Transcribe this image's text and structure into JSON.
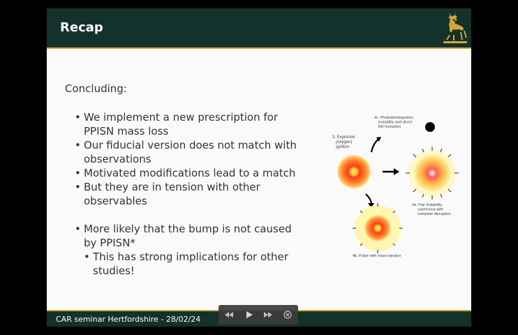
{
  "slide": {
    "title": "Recap",
    "intro": "Concluding:",
    "bullets": [
      "We implement a new prescription for PPISN mass loss",
      "Our fiducial version does not match with observations",
      "Motivated modifications lead to a match",
      "But they are in tension with other observables"
    ],
    "bullet_more": "More likely that the bump is not caused by PPISN*",
    "sub_bullet": "This has strong implications for other studies!",
    "footer": "CAR seminar Hertfordshire - 28/02/24"
  },
  "diagram": {
    "label_3": "3. Explosive (oxygen) ignition",
    "label_4c": "4c. Photodisintegration instability and direct BH formation",
    "label_4a": "4a. Pair Instability supernova with complete disruption",
    "label_4b": "4b. Pulse with mass ejection"
  },
  "controls": {
    "icons": [
      "rewind-icon",
      "play-icon",
      "fast-forward-icon",
      "close-icon"
    ]
  },
  "colors": {
    "header_bg": "#12322b",
    "accent": "#d4a63a",
    "slide_bg": "#fafafa"
  }
}
